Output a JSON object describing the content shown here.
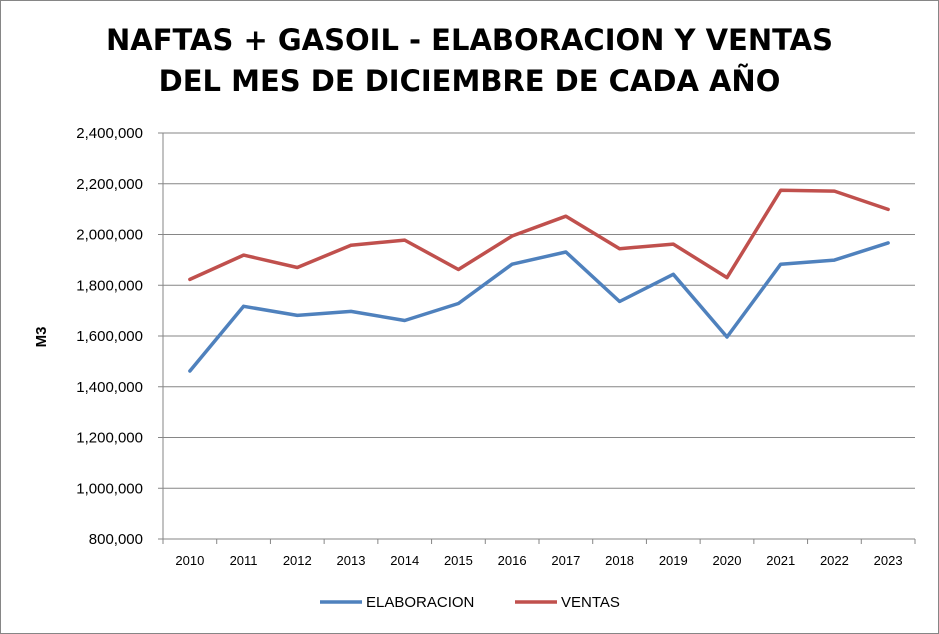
{
  "chart_data": {
    "type": "line",
    "title_line1": "NAFTAS + GASOIL - ELABORACION Y VENTAS",
    "title_line2": "DEL MES DE DICIEMBRE DE CADA AÑO",
    "xlabel": "",
    "ylabel": "M3",
    "categories": [
      "2010",
      "2011",
      "2012",
      "2013",
      "2014",
      "2015",
      "2016",
      "2017",
      "2018",
      "2019",
      "2020",
      "2021",
      "2022",
      "2023"
    ],
    "ylim": [
      800000,
      2400000
    ],
    "yticks": [
      800000,
      1000000,
      1200000,
      1400000,
      1600000,
      1800000,
      2000000,
      2200000,
      2400000
    ],
    "ytick_labels": [
      "800,000",
      "1,000,000",
      "1,200,000",
      "1,400,000",
      "1,600,000",
      "1,800,000",
      "2,000,000",
      "2,200,000",
      "2,400,000"
    ],
    "grid": true,
    "legend_position": "bottom",
    "series": [
      {
        "name": "ELABORACION",
        "color": "#4F81BD",
        "values": [
          1462000,
          1717000,
          1681000,
          1697000,
          1661000,
          1728000,
          1883000,
          1931000,
          1736000,
          1843000,
          1596000,
          1883000,
          1899000,
          1967000
        ]
      },
      {
        "name": "VENTAS",
        "color": "#C0504D",
        "values": [
          1823000,
          1919000,
          1870000,
          1958000,
          1978000,
          1862000,
          1994000,
          2072000,
          1944000,
          1962000,
          1830000,
          2174000,
          2171000,
          2099000
        ]
      }
    ]
  }
}
